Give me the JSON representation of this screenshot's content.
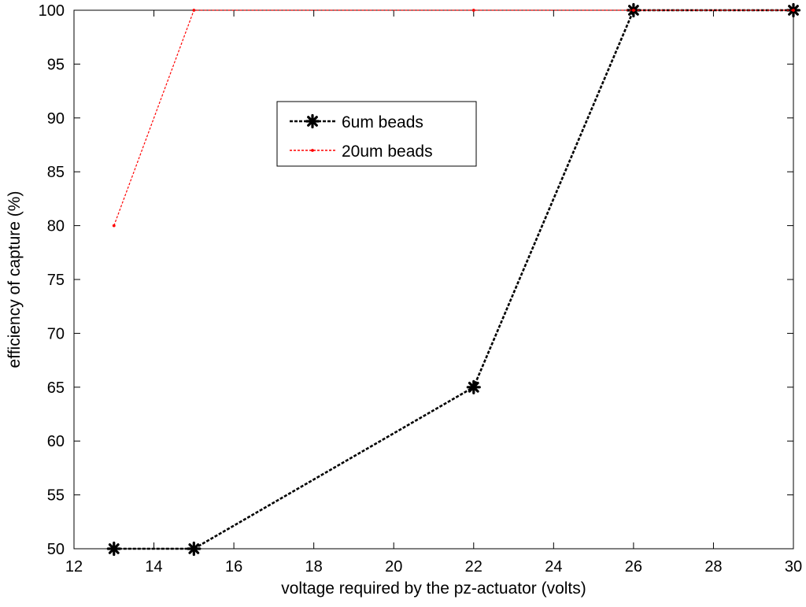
{
  "chart_data": {
    "type": "line",
    "xlabel": "voltage required by the pz-actuator (volts)",
    "ylabel": "efficiency of capture (%)",
    "xlim": [
      12,
      30
    ],
    "ylim": [
      50,
      100
    ],
    "xticks": [
      12,
      14,
      16,
      18,
      20,
      22,
      24,
      26,
      28,
      30
    ],
    "yticks": [
      50,
      55,
      60,
      65,
      70,
      75,
      80,
      85,
      90,
      95,
      100
    ],
    "grid": false,
    "legend_position": "upper-center",
    "series": [
      {
        "name": "6um beads",
        "color": "#000000",
        "line_style": "dashed",
        "marker": "asterisk",
        "x": [
          13,
          15,
          22,
          26,
          30
        ],
        "y": [
          50,
          50,
          65,
          100,
          100
        ]
      },
      {
        "name": "20um beads",
        "color": "#ff0000",
        "line_style": "dashed",
        "marker": "point",
        "x": [
          13,
          15,
          22,
          26,
          30
        ],
        "y": [
          80,
          100,
          100,
          100,
          100
        ]
      }
    ]
  }
}
